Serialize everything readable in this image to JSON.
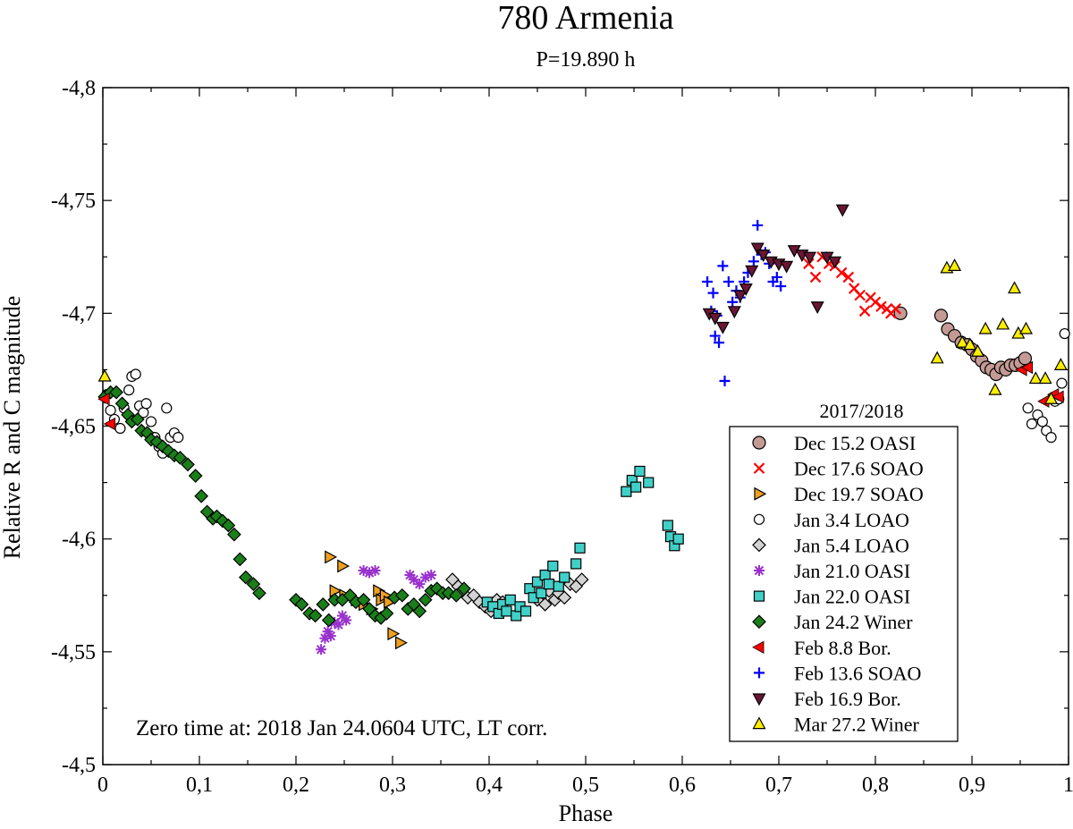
{
  "chart_data": {
    "type": "scatter",
    "title": "780 Armenia",
    "subtitle": "P=19.890 h",
    "xlabel": "Phase",
    "ylabel": "Relative R and C magnitude",
    "xlim": [
      0,
      1
    ],
    "ylim": [
      -4.8,
      -4.5
    ],
    "x_ticks": [
      0,
      0.1,
      0.2,
      0.3,
      0.4,
      0.5,
      0.6,
      0.7,
      0.8,
      0.9,
      1
    ],
    "x_tick_labels": [
      "0",
      "0,1",
      "0,2",
      "0,3",
      "0,4",
      "0,5",
      "0,6",
      "0,7",
      "0,8",
      "0,9",
      "1"
    ],
    "y_ticks": [
      -4.8,
      -4.75,
      -4.7,
      -4.65,
      -4.6,
      -4.55,
      -4.5
    ],
    "y_tick_labels": [
      "-4,8",
      "-4,75",
      "-4,7",
      "-4,65",
      "-4,6",
      "-4,55",
      "-4,5"
    ],
    "legend_title": "2017/2018",
    "legend_position": "lower-right",
    "annotation": "Zero time at: 2018 Jan 24.0604 UTC, LT corr.",
    "grid": false,
    "series": [
      {
        "name": "Dec 15.2 OASI",
        "marker": "circle",
        "color": "#c49a94",
        "points": [
          [
            0.826,
            -4.7
          ],
          [
            0.868,
            -4.699
          ],
          [
            0.875,
            -4.693
          ],
          [
            0.882,
            -4.69
          ],
          [
            0.889,
            -4.687
          ],
          [
            0.895,
            -4.686
          ],
          [
            0.9,
            -4.684
          ],
          [
            0.905,
            -4.681
          ],
          [
            0.91,
            -4.679
          ],
          [
            0.915,
            -4.676
          ],
          [
            0.92,
            -4.675
          ],
          [
            0.925,
            -4.673
          ],
          [
            0.93,
            -4.676
          ],
          [
            0.935,
            -4.675
          ],
          [
            0.94,
            -4.677
          ],
          [
            0.945,
            -4.677
          ],
          [
            0.95,
            -4.678
          ],
          [
            0.955,
            -4.68
          ]
        ]
      },
      {
        "name": "Dec 17.6 SOAO",
        "marker": "x",
        "color": "#ff0000",
        "points": [
          [
            0.731,
            -4.722
          ],
          [
            0.738,
            -4.716
          ],
          [
            0.745,
            -4.725
          ],
          [
            0.752,
            -4.722
          ],
          [
            0.758,
            -4.721
          ],
          [
            0.765,
            -4.718
          ],
          [
            0.772,
            -4.716
          ],
          [
            0.778,
            -4.711
          ],
          [
            0.784,
            -4.708
          ],
          [
            0.789,
            -4.701
          ],
          [
            0.795,
            -4.707
          ],
          [
            0.8,
            -4.705
          ],
          [
            0.806,
            -4.703
          ],
          [
            0.812,
            -4.702
          ],
          [
            0.816,
            -4.7
          ],
          [
            0.821,
            -4.702
          ]
        ]
      },
      {
        "name": "Dec 19.7 SOAO",
        "marker": "triangle-right",
        "color": "#f0a020",
        "points": [
          [
            0.235,
            -4.592
          ],
          [
            0.248,
            -4.588
          ],
          [
            0.24,
            -4.577
          ],
          [
            0.25,
            -4.575
          ],
          [
            0.262,
            -4.573
          ],
          [
            0.27,
            -4.571
          ],
          [
            0.278,
            -4.569
          ],
          [
            0.285,
            -4.577
          ],
          [
            0.288,
            -4.573
          ],
          [
            0.292,
            -4.575
          ],
          [
            0.296,
            -4.572
          ],
          [
            0.3,
            -4.558
          ],
          [
            0.308,
            -4.554
          ]
        ]
      },
      {
        "name": "Jan 3.4 LOAO",
        "marker": "circle-open",
        "color": "#ffffff",
        "points": [
          [
            0.004,
            -4.664
          ],
          [
            0.008,
            -4.657
          ],
          [
            0.012,
            -4.653
          ],
          [
            0.018,
            -4.649
          ],
          [
            0.022,
            -4.658
          ],
          [
            0.027,
            -4.666
          ],
          [
            0.03,
            -4.672
          ],
          [
            0.034,
            -4.673
          ],
          [
            0.038,
            -4.659
          ],
          [
            0.042,
            -4.656
          ],
          [
            0.045,
            -4.66
          ],
          [
            0.05,
            -4.652
          ],
          [
            0.054,
            -4.645
          ],
          [
            0.058,
            -4.641
          ],
          [
            0.062,
            -4.638
          ],
          [
            0.066,
            -4.658
          ],
          [
            0.07,
            -4.645
          ],
          [
            0.074,
            -4.647
          ],
          [
            0.078,
            -4.645
          ],
          [
            0.958,
            -4.658
          ],
          [
            0.962,
            -4.651
          ],
          [
            0.968,
            -4.655
          ],
          [
            0.973,
            -4.652
          ],
          [
            0.977,
            -4.648
          ],
          [
            0.982,
            -4.645
          ],
          [
            0.986,
            -4.661
          ],
          [
            0.99,
            -4.662
          ],
          [
            0.993,
            -4.669
          ],
          [
            0.996,
            -4.691
          ]
        ]
      },
      {
        "name": "Jan 5.4 LOAO",
        "marker": "diamond",
        "color": "#d3d3d3",
        "points": [
          [
            0.362,
            -4.582
          ],
          [
            0.368,
            -4.579
          ],
          [
            0.372,
            -4.577
          ],
          [
            0.378,
            -4.574
          ],
          [
            0.384,
            -4.575
          ],
          [
            0.39,
            -4.572
          ],
          [
            0.396,
            -4.57
          ],
          [
            0.402,
            -4.568
          ],
          [
            0.408,
            -4.573
          ],
          [
            0.414,
            -4.572
          ],
          [
            0.45,
            -4.573
          ],
          [
            0.458,
            -4.571
          ],
          [
            0.462,
            -4.577
          ],
          [
            0.468,
            -4.573
          ],
          [
            0.472,
            -4.576
          ],
          [
            0.478,
            -4.574
          ],
          [
            0.484,
            -4.58
          ],
          [
            0.49,
            -4.579
          ],
          [
            0.496,
            -4.582
          ]
        ]
      },
      {
        "name": "Jan 21.0 OASI",
        "marker": "asterisk",
        "color": "#9932cc",
        "points": [
          [
            0.226,
            -4.551
          ],
          [
            0.23,
            -4.556
          ],
          [
            0.233,
            -4.559
          ],
          [
            0.236,
            -4.557
          ],
          [
            0.24,
            -4.563
          ],
          [
            0.244,
            -4.562
          ],
          [
            0.248,
            -4.566
          ],
          [
            0.252,
            -4.564
          ],
          [
            0.27,
            -4.586
          ],
          [
            0.276,
            -4.585
          ],
          [
            0.282,
            -4.586
          ],
          [
            0.318,
            -4.584
          ],
          [
            0.322,
            -4.582
          ],
          [
            0.328,
            -4.58
          ],
          [
            0.334,
            -4.583
          ],
          [
            0.34,
            -4.584
          ]
        ]
      },
      {
        "name": "Jan 22.0 OASI",
        "marker": "square",
        "color": "#40d0c8",
        "points": [
          [
            0.398,
            -4.572
          ],
          [
            0.404,
            -4.57
          ],
          [
            0.41,
            -4.567
          ],
          [
            0.414,
            -4.571
          ],
          [
            0.418,
            -4.568
          ],
          [
            0.422,
            -4.573
          ],
          [
            0.428,
            -4.566
          ],
          [
            0.432,
            -4.57
          ],
          [
            0.438,
            -4.568
          ],
          [
            0.442,
            -4.578
          ],
          [
            0.446,
            -4.574
          ],
          [
            0.45,
            -4.581
          ],
          [
            0.454,
            -4.576
          ],
          [
            0.458,
            -4.584
          ],
          [
            0.462,
            -4.58
          ],
          [
            0.466,
            -4.588
          ],
          [
            0.472,
            -4.579
          ],
          [
            0.478,
            -4.583
          ],
          [
            0.49,
            -4.589
          ],
          [
            0.494,
            -4.596
          ],
          [
            0.542,
            -4.621
          ],
          [
            0.548,
            -4.626
          ],
          [
            0.552,
            -4.623
          ],
          [
            0.556,
            -4.63
          ],
          [
            0.565,
            -4.625
          ],
          [
            0.585,
            -4.606
          ],
          [
            0.588,
            -4.601
          ],
          [
            0.592,
            -4.597
          ],
          [
            0.596,
            -4.6
          ]
        ]
      },
      {
        "name": "Jan 24.2 Winer",
        "marker": "diamond",
        "color": "#1a7f1a",
        "points": [
          [
            0.002,
            -4.663
          ],
          [
            0.008,
            -4.665
          ],
          [
            0.014,
            -4.665
          ],
          [
            0.02,
            -4.66
          ],
          [
            0.026,
            -4.655
          ],
          [
            0.03,
            -4.652
          ],
          [
            0.036,
            -4.653
          ],
          [
            0.04,
            -4.648
          ],
          [
            0.046,
            -4.647
          ],
          [
            0.05,
            -4.644
          ],
          [
            0.056,
            -4.643
          ],
          [
            0.062,
            -4.641
          ],
          [
            0.068,
            -4.639
          ],
          [
            0.074,
            -4.637
          ],
          [
            0.08,
            -4.636
          ],
          [
            0.088,
            -4.633
          ],
          [
            0.096,
            -4.628
          ],
          [
            0.102,
            -4.619
          ],
          [
            0.108,
            -4.612
          ],
          [
            0.114,
            -4.609
          ],
          [
            0.118,
            -4.61
          ],
          [
            0.124,
            -4.608
          ],
          [
            0.13,
            -4.606
          ],
          [
            0.136,
            -4.602
          ],
          [
            0.142,
            -4.591
          ],
          [
            0.148,
            -4.583
          ],
          [
            0.156,
            -4.58
          ],
          [
            0.162,
            -4.576
          ],
          [
            0.2,
            -4.573
          ],
          [
            0.206,
            -4.571
          ],
          [
            0.214,
            -4.567
          ],
          [
            0.22,
            -4.566
          ],
          [
            0.228,
            -4.571
          ],
          [
            0.234,
            -4.564
          ],
          [
            0.24,
            -4.573
          ],
          [
            0.248,
            -4.573
          ],
          [
            0.256,
            -4.575
          ],
          [
            0.262,
            -4.572
          ],
          [
            0.27,
            -4.573
          ],
          [
            0.276,
            -4.569
          ],
          [
            0.282,
            -4.566
          ],
          [
            0.288,
            -4.565
          ],
          [
            0.294,
            -4.567
          ],
          [
            0.302,
            -4.574
          ],
          [
            0.31,
            -4.575
          ],
          [
            0.316,
            -4.569
          ],
          [
            0.322,
            -4.571
          ],
          [
            0.328,
            -4.568
          ],
          [
            0.334,
            -4.573
          ],
          [
            0.34,
            -4.577
          ],
          [
            0.346,
            -4.578
          ],
          [
            0.352,
            -4.576
          ],
          [
            0.358,
            -4.576
          ],
          [
            0.366,
            -4.575
          ],
          [
            0.374,
            -4.578
          ]
        ]
      },
      {
        "name": "Feb 8.8 Bor.",
        "marker": "triangle-left",
        "color": "#ff0000",
        "points": [
          [
            0.002,
            -4.662
          ],
          [
            0.008,
            -4.651
          ],
          [
            0.952,
            -4.675
          ],
          [
            0.958,
            -4.676
          ],
          [
            0.975,
            -4.661
          ],
          [
            0.985,
            -4.664
          ],
          [
            0.99,
            -4.663
          ]
        ]
      },
      {
        "name": "Feb 13.6 SOAO",
        "marker": "plus",
        "color": "#0000ff",
        "points": [
          [
            0.626,
            -4.714
          ],
          [
            0.632,
            -4.709
          ],
          [
            0.63,
            -4.701
          ],
          [
            0.636,
            -4.699
          ],
          [
            0.634,
            -4.69
          ],
          [
            0.638,
            -4.687
          ],
          [
            0.644,
            -4.67
          ],
          [
            0.642,
            -4.721
          ],
          [
            0.648,
            -4.714
          ],
          [
            0.652,
            -4.705
          ],
          [
            0.656,
            -4.71
          ],
          [
            0.66,
            -4.707
          ],
          [
            0.664,
            -4.714
          ],
          [
            0.668,
            -4.718
          ],
          [
            0.674,
            -4.723
          ],
          [
            0.678,
            -4.739
          ],
          [
            0.682,
            -4.726
          ],
          [
            0.686,
            -4.727
          ],
          [
            0.69,
            -4.722
          ],
          [
            0.694,
            -4.714
          ],
          [
            0.698,
            -4.716
          ],
          [
            0.702,
            -4.712
          ]
        ]
      },
      {
        "name": "Feb 16.9 Bor.",
        "marker": "triangle-down",
        "color": "#6b1535",
        "points": [
          [
            0.628,
            -4.7
          ],
          [
            0.634,
            -4.698
          ],
          [
            0.642,
            -4.694
          ],
          [
            0.654,
            -4.701
          ],
          [
            0.66,
            -4.708
          ],
          [
            0.666,
            -4.711
          ],
          [
            0.672,
            -4.719
          ],
          [
            0.678,
            -4.729
          ],
          [
            0.684,
            -4.726
          ],
          [
            0.692,
            -4.723
          ],
          [
            0.7,
            -4.722
          ],
          [
            0.708,
            -4.721
          ],
          [
            0.716,
            -4.728
          ],
          [
            0.724,
            -4.726
          ],
          [
            0.732,
            -4.725
          ],
          [
            0.74,
            -4.703
          ],
          [
            0.75,
            -4.725
          ],
          [
            0.758,
            -4.723
          ],
          [
            0.766,
            -4.746
          ]
        ]
      },
      {
        "name": "Mar 27.2 Winer",
        "marker": "triangle-up",
        "color": "#ffee00",
        "points": [
          [
            0.002,
            -4.672
          ],
          [
            0.864,
            -4.68
          ],
          [
            0.874,
            -4.72
          ],
          [
            0.882,
            -4.721
          ],
          [
            0.89,
            -4.687
          ],
          [
            0.898,
            -4.686
          ],
          [
            0.906,
            -4.683
          ],
          [
            0.914,
            -4.693
          ],
          [
            0.924,
            -4.666
          ],
          [
            0.932,
            -4.695
          ],
          [
            0.944,
            -4.711
          ],
          [
            0.948,
            -4.691
          ],
          [
            0.956,
            -4.693
          ],
          [
            0.966,
            -4.671
          ],
          [
            0.976,
            -4.671
          ],
          [
            0.982,
            -4.662
          ],
          [
            0.992,
            -4.677
          ]
        ]
      }
    ]
  }
}
